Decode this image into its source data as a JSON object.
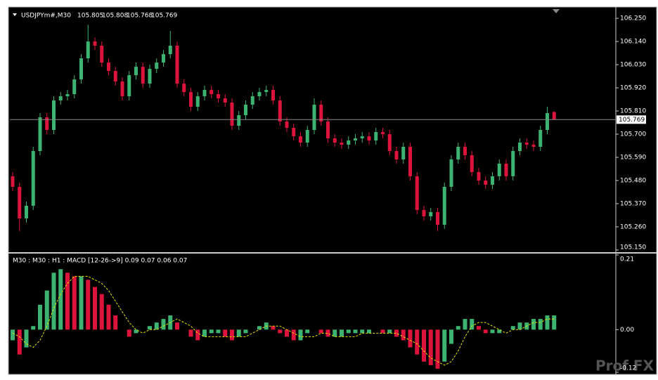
{
  "chart_data": [
    {
      "type": "candlestick",
      "title": "USDJPYm#,M30",
      "up_color": "#3cb371",
      "down_color": "#dc143c",
      "ylim": [
        105.143,
        106.297
      ],
      "yticks": [
        {
          "value": 106.25,
          "label": "106.250"
        },
        {
          "value": 106.14,
          "label": "106.140"
        },
        {
          "value": 106.03,
          "label": "106.030"
        },
        {
          "value": 105.92,
          "label": "105.920"
        },
        {
          "value": 105.81,
          "label": "105.810"
        },
        {
          "value": 105.7,
          "label": "105.700"
        },
        {
          "value": 105.59,
          "label": "105.590"
        },
        {
          "value": 105.48,
          "label": "105.480"
        },
        {
          "value": 105.37,
          "label": "105.370"
        },
        {
          "value": 105.26,
          "label": "105.260"
        },
        {
          "value": 105.15,
          "label": "105.150"
        }
      ],
      "open": [
        105.5,
        105.45,
        105.3,
        105.36,
        105.62,
        105.78,
        105.72,
        105.86,
        105.88,
        105.89,
        105.96,
        106.06,
        106.14,
        106.12,
        106.04,
        106.0,
        105.95,
        105.88,
        105.98,
        106.02,
        105.94,
        106.01,
        106.04,
        106.08,
        106.12,
        105.94,
        105.9,
        105.83,
        105.88,
        105.91,
        105.89,
        105.87,
        105.85,
        105.74,
        105.79,
        105.84,
        105.88,
        105.9,
        105.91,
        105.86,
        105.76,
        105.73,
        105.69,
        105.66,
        105.72,
        105.84,
        105.76,
        105.68,
        105.66,
        105.65,
        105.67,
        105.68,
        105.69,
        105.67,
        105.71,
        105.7,
        105.62,
        105.58,
        105.64,
        105.5,
        105.34,
        105.31,
        105.33,
        105.27,
        105.45,
        105.58,
        105.64,
        105.6,
        105.52,
        105.48,
        105.46,
        105.5,
        105.56,
        105.5,
        105.62,
        105.66,
        105.65,
        105.64,
        105.72,
        105.805
      ],
      "high": [
        105.52,
        105.47,
        105.38,
        105.64,
        105.8,
        105.8,
        105.88,
        105.9,
        105.91,
        105.98,
        106.08,
        106.22,
        106.16,
        106.14,
        106.06,
        106.02,
        105.97,
        106.0,
        106.04,
        106.04,
        106.03,
        106.06,
        106.1,
        106.19,
        106.14,
        105.96,
        105.92,
        105.9,
        105.93,
        105.93,
        105.91,
        105.89,
        105.87,
        105.81,
        105.86,
        105.9,
        105.92,
        105.93,
        105.93,
        105.88,
        105.78,
        105.75,
        105.71,
        105.74,
        105.87,
        105.86,
        105.78,
        105.7,
        105.68,
        105.69,
        105.7,
        105.71,
        105.71,
        105.73,
        105.73,
        105.72,
        105.64,
        105.66,
        105.66,
        105.52,
        105.36,
        105.35,
        105.35,
        105.47,
        105.6,
        105.66,
        105.66,
        105.62,
        105.54,
        105.5,
        105.52,
        105.58,
        105.58,
        105.64,
        105.68,
        105.68,
        105.67,
        105.74,
        105.83,
        105.808
      ],
      "low": [
        105.43,
        105.24,
        105.28,
        105.34,
        105.6,
        105.7,
        105.7,
        105.84,
        105.86,
        105.87,
        105.94,
        106.04,
        106.1,
        106.02,
        105.98,
        105.93,
        105.86,
        105.86,
        105.96,
        105.92,
        105.92,
        105.99,
        106.02,
        106.06,
        105.92,
        105.88,
        105.81,
        105.81,
        105.86,
        105.87,
        105.85,
        105.83,
        105.72,
        105.72,
        105.77,
        105.82,
        105.86,
        105.88,
        105.84,
        105.74,
        105.71,
        105.67,
        105.64,
        105.64,
        105.7,
        105.74,
        105.66,
        105.64,
        105.63,
        105.63,
        105.65,
        105.66,
        105.65,
        105.65,
        105.68,
        105.6,
        105.56,
        105.56,
        105.48,
        105.32,
        105.29,
        105.29,
        105.24,
        105.25,
        105.43,
        105.56,
        105.58,
        105.5,
        105.46,
        105.44,
        105.44,
        105.48,
        105.48,
        105.48,
        105.6,
        105.63,
        105.62,
        105.62,
        105.7,
        105.768
      ],
      "close": [
        105.45,
        105.3,
        105.36,
        105.62,
        105.78,
        105.72,
        105.86,
        105.88,
        105.89,
        105.96,
        106.06,
        106.14,
        106.12,
        106.04,
        106.0,
        105.95,
        105.88,
        105.98,
        106.02,
        105.94,
        106.01,
        106.04,
        106.08,
        106.12,
        105.94,
        105.9,
        105.83,
        105.88,
        105.91,
        105.89,
        105.87,
        105.85,
        105.74,
        105.79,
        105.84,
        105.88,
        105.9,
        105.91,
        105.86,
        105.76,
        105.73,
        105.69,
        105.66,
        105.72,
        105.84,
        105.76,
        105.68,
        105.66,
        105.65,
        105.67,
        105.68,
        105.69,
        105.67,
        105.71,
        105.7,
        105.62,
        105.58,
        105.64,
        105.5,
        105.34,
        105.31,
        105.33,
        105.27,
        105.45,
        105.58,
        105.64,
        105.6,
        105.52,
        105.48,
        105.46,
        105.5,
        105.56,
        105.5,
        105.62,
        105.66,
        105.65,
        105.64,
        105.72,
        105.8,
        105.769
      ]
    },
    {
      "type": "macd",
      "title": "M30 : M30 : H1 :  MACD [12-26->9] 0.09 0.07 0.06 0.07",
      "ylim": [
        -0.12,
        0.21
      ],
      "yticks": [
        0.21,
        {
          "value": 0,
          "label": "0.00"
        },
        -0.12
      ],
      "up_color": "#3cb371",
      "down_color": "#dc143c",
      "signal_color": "#e6e600",
      "histogram": [
        -0.03,
        -0.07,
        -0.05,
        0.01,
        0.07,
        0.11,
        0.16,
        0.17,
        0.16,
        0.15,
        0.15,
        0.14,
        0.12,
        0.1,
        0.07,
        0.04,
        0.0,
        -0.02,
        -0.01,
        0.0,
        0.01,
        0.02,
        0.03,
        0.04,
        0.02,
        0.0,
        -0.02,
        -0.03,
        -0.02,
        -0.01,
        -0.01,
        -0.02,
        -0.03,
        -0.02,
        -0.01,
        0.0,
        0.01,
        0.02,
        0.01,
        -0.01,
        -0.02,
        -0.03,
        -0.03,
        -0.01,
        0.0,
        -0.01,
        -0.02,
        -0.02,
        -0.02,
        -0.01,
        -0.01,
        -0.01,
        -0.01,
        0.0,
        -0.01,
        -0.01,
        -0.02,
        -0.03,
        -0.05,
        -0.07,
        -0.09,
        -0.1,
        -0.11,
        -0.09,
        -0.04,
        0.01,
        0.03,
        0.03,
        0.01,
        -0.01,
        -0.01,
        -0.01,
        0.0,
        0.01,
        0.02,
        0.02,
        0.03,
        0.03,
        0.04,
        0.04
      ],
      "signal": [
        -0.01,
        -0.02,
        -0.04,
        -0.05,
        -0.03,
        0.01,
        0.06,
        0.1,
        0.13,
        0.15,
        0.15,
        0.15,
        0.14,
        0.13,
        0.11,
        0.08,
        0.05,
        0.02,
        0.0,
        -0.01,
        0.0,
        0.0,
        0.01,
        0.02,
        0.03,
        0.02,
        0.01,
        -0.01,
        -0.02,
        -0.02,
        -0.02,
        -0.02,
        -0.02,
        -0.02,
        -0.02,
        -0.01,
        0.0,
        0.01,
        0.01,
        0.01,
        0.0,
        -0.01,
        -0.02,
        -0.02,
        -0.02,
        -0.01,
        -0.01,
        -0.02,
        -0.02,
        -0.02,
        -0.02,
        -0.01,
        -0.01,
        -0.01,
        -0.01,
        -0.01,
        -0.01,
        -0.02,
        -0.03,
        -0.04,
        -0.06,
        -0.08,
        -0.09,
        -0.1,
        -0.09,
        -0.06,
        -0.02,
        0.01,
        0.02,
        0.02,
        0.01,
        0.0,
        -0.01,
        0.0,
        0.0,
        0.01,
        0.02,
        0.02,
        0.03,
        0.03
      ]
    }
  ],
  "watermark": "Prof FX"
}
